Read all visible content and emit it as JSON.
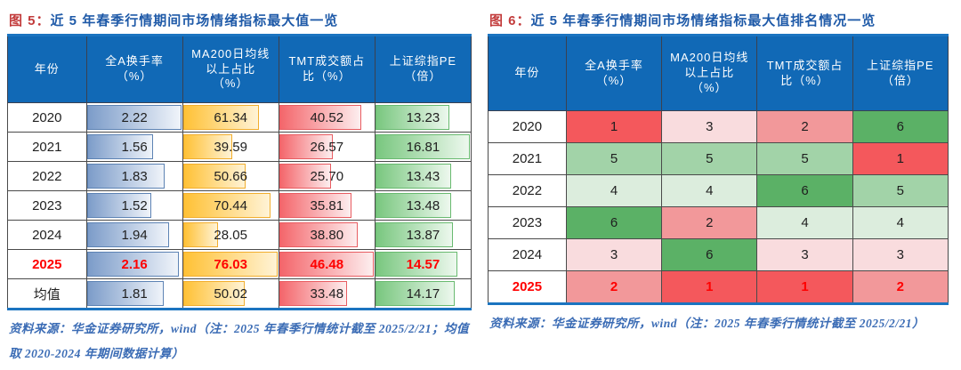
{
  "colors": {
    "header_bg": "#1169B6",
    "rule_blue": "#1B74C0",
    "title_blue": "#1F5AA8",
    "title_red": "#C23B3B",
    "source_blue": "#3B6CB5",
    "highlight_red": "#FF0000"
  },
  "figures": [
    {
      "title_prefix": "图 5：",
      "title_text": "近 5 年春季行情期间市场情绪指标最大值一览",
      "table_type": "databar",
      "columns": [
        "年份",
        "全A换手率\n（%）",
        "MA200日均线\n以上占比\n（%）",
        "TMT成交额占\n比（%）",
        "上证综指PE\n（倍）"
      ],
      "column_max": [
        2.22,
        76.03,
        46.48,
        16.81
      ],
      "bar_styles": [
        {
          "start": "#7C9CC9",
          "end": "#F0F4FA",
          "border": "#5D83B4"
        },
        {
          "start": "#FFC135",
          "end": "#FFF3D6",
          "border": "#F2AE2E"
        },
        {
          "start": "#F4666B",
          "end": "#FDEEEF",
          "border": "#E85D62"
        },
        {
          "start": "#79C77F",
          "end": "#EDF8EE",
          "border": "#69BA70"
        }
      ],
      "rows": [
        {
          "year": "2020",
          "values": [
            "2.22",
            "61.34",
            "40.52",
            "13.23"
          ],
          "highlight": false
        },
        {
          "year": "2021",
          "values": [
            "1.56",
            "39.59",
            "26.57",
            "16.81"
          ],
          "highlight": false
        },
        {
          "year": "2022",
          "values": [
            "1.83",
            "50.66",
            "25.70",
            "13.43"
          ],
          "highlight": false
        },
        {
          "year": "2023",
          "values": [
            "1.52",
            "70.44",
            "35.81",
            "13.48"
          ],
          "highlight": false
        },
        {
          "year": "2024",
          "values": [
            "1.94",
            "28.05",
            "38.80",
            "13.87"
          ],
          "highlight": false
        },
        {
          "year": "2025",
          "values": [
            "2.16",
            "76.03",
            "46.48",
            "14.57"
          ],
          "highlight": true
        },
        {
          "year": "均值",
          "values": [
            "1.81",
            "50.02",
            "33.48",
            "14.17"
          ],
          "highlight": false
        }
      ],
      "source_note": "资料来源：华金证券研究所，wind（注：2025 年春季行情统计截至 2025/2/21；均值取 2020-2024 年期间数据计算）"
    },
    {
      "title_prefix": "图 6：",
      "title_text": "近 5 年春季行情期间市场情绪指标最大值排名情况一览",
      "table_type": "colorscale",
      "columns": [
        "年份",
        "全A换手率\n（%）",
        "MA200日均线\n以上占比\n（%）",
        "TMT成交额占\n比（%）",
        "上证综指PE\n（倍）"
      ],
      "rank_colors": {
        "1": "#F4585C",
        "2": "#F2989A",
        "3": "#F9DCDE",
        "4": "#DCEDDD",
        "5": "#A2D3A8",
        "6": "#5BB166"
      },
      "rows": [
        {
          "year": "2020",
          "ranks": [
            1,
            3,
            2,
            6
          ],
          "highlight": false
        },
        {
          "year": "2021",
          "ranks": [
            5,
            5,
            5,
            1
          ],
          "highlight": false
        },
        {
          "year": "2022",
          "ranks": [
            4,
            4,
            6,
            5
          ],
          "highlight": false
        },
        {
          "year": "2023",
          "ranks": [
            6,
            2,
            4,
            4
          ],
          "highlight": false
        },
        {
          "year": "2024",
          "ranks": [
            3,
            6,
            3,
            3
          ],
          "highlight": false
        },
        {
          "year": "2025",
          "ranks": [
            2,
            1,
            1,
            2
          ],
          "highlight": true
        }
      ],
      "source_note": "资料来源：华金证券研究所，wind（注：2025 年春季行情统计截至 2025/2/21）"
    }
  ]
}
